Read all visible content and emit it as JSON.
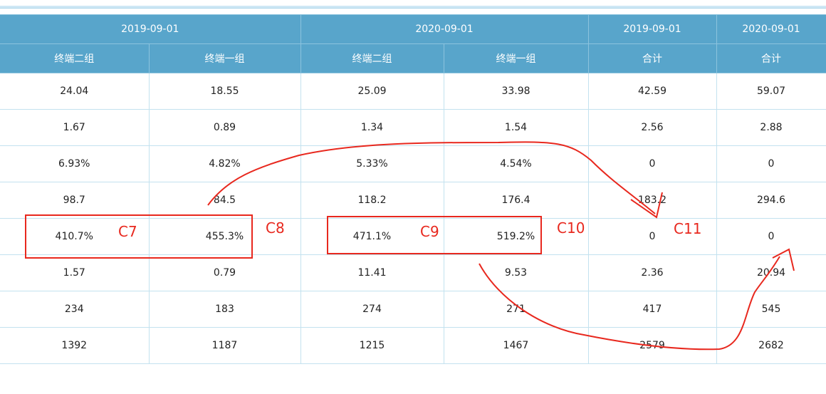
{
  "table": {
    "header_groups": [
      {
        "label": "2019-09-01",
        "span": 2
      },
      {
        "label": "2020-09-01",
        "span": 2
      },
      {
        "label": "2019-09-01",
        "span": 1
      },
      {
        "label": "2020-09-01",
        "span": 1
      }
    ],
    "columns": [
      "终端二组",
      "终端一组",
      "终端二组",
      "终端一组",
      "合计",
      "合计"
    ],
    "rows": [
      [
        "24.04",
        "18.55",
        "25.09",
        "33.98",
        "42.59",
        "59.07"
      ],
      [
        "1.67",
        "0.89",
        "1.34",
        "1.54",
        "2.56",
        "2.88"
      ],
      [
        "6.93%",
        "4.82%",
        "5.33%",
        "4.54%",
        "0",
        "0"
      ],
      [
        "98.7",
        "84.5",
        "118.2",
        "176.4",
        "183.2",
        "294.6"
      ],
      [
        "410.7%",
        "455.3%",
        "471.1%",
        "519.2%",
        "0",
        "0"
      ],
      [
        "1.57",
        "0.79",
        "11.41",
        "9.53",
        "2.36",
        "20.94"
      ],
      [
        "234",
        "183",
        "274",
        "271",
        "417",
        "545"
      ],
      [
        "1392",
        "1187",
        "1215",
        "1467",
        "2579",
        "2682"
      ]
    ]
  },
  "annotations": [
    "C7",
    "C8",
    "C9",
    "C10",
    "C11"
  ]
}
